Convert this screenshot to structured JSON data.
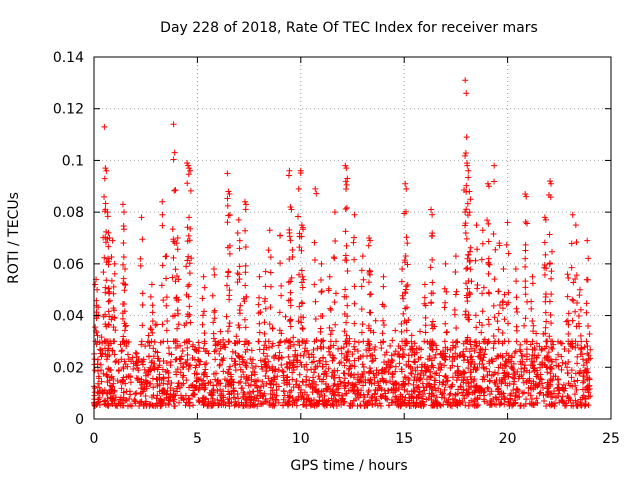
{
  "chart_data": {
    "type": "scatter",
    "title": "Day 228 of 2018, Rate Of TEC Index for receiver mars",
    "xlabel": "GPS time / hours",
    "ylabel": "ROTI / TECUs",
    "xlim": [
      0,
      25
    ],
    "ylim": [
      0,
      0.14
    ],
    "x_ticks": [
      0,
      5,
      10,
      15,
      20,
      25
    ],
    "x_tick_labels": [
      "0",
      "5",
      "10",
      "15",
      "20",
      "25"
    ],
    "y_ticks": [
      0,
      0.02,
      0.04,
      0.06,
      0.08,
      0.1,
      0.12,
      0.14
    ],
    "y_tick_labels": [
      "0",
      "0.02",
      "0.04",
      "0.06",
      "0.08",
      "0.1",
      "0.12",
      "0.14"
    ],
    "grid": true,
    "marker": "+",
    "color": "#ff0000",
    "series": [
      {
        "name": "ROTI",
        "baseline_band": [
          0.005,
          0.03
        ],
        "points": [
          [
            0.5,
            0.113
          ],
          [
            0.55,
            0.097
          ],
          [
            0.6,
            0.096
          ],
          [
            0.65,
            0.08
          ],
          [
            0.7,
            0.072
          ],
          [
            0.75,
            0.07
          ],
          [
            0.9,
            0.069
          ],
          [
            1.4,
            0.083
          ],
          [
            1.45,
            0.08
          ],
          [
            1.5,
            0.058
          ],
          [
            2.3,
            0.078
          ],
          [
            3.3,
            0.084
          ],
          [
            3.85,
            0.114
          ],
          [
            3.9,
            0.103
          ],
          [
            4.0,
            0.068
          ],
          [
            4.05,
            0.07
          ],
          [
            4.5,
            0.099
          ],
          [
            4.55,
            0.098
          ],
          [
            4.6,
            0.097
          ],
          [
            4.65,
            0.096
          ],
          [
            6.45,
            0.095
          ],
          [
            6.5,
            0.088
          ],
          [
            6.55,
            0.087
          ],
          [
            7.0,
            0.077
          ],
          [
            7.05,
            0.069
          ],
          [
            7.3,
            0.084
          ],
          [
            7.35,
            0.083
          ],
          [
            8.5,
            0.073
          ],
          [
            9.0,
            0.071
          ],
          [
            9.45,
            0.096
          ],
          [
            9.5,
            0.082
          ],
          [
            9.55,
            0.081
          ],
          [
            9.9,
            0.089
          ],
          [
            10.0,
            0.096
          ],
          [
            10.05,
            0.075
          ],
          [
            10.1,
            0.074
          ],
          [
            10.7,
            0.089
          ],
          [
            11.65,
            0.08
          ],
          [
            12.15,
            0.098
          ],
          [
            12.2,
            0.097
          ],
          [
            12.25,
            0.093
          ],
          [
            12.6,
            0.079
          ],
          [
            13.3,
            0.07
          ],
          [
            13.35,
            0.069
          ],
          [
            15.05,
            0.091
          ],
          [
            15.1,
            0.089
          ],
          [
            15.15,
            0.068
          ],
          [
            16.3,
            0.081
          ],
          [
            16.35,
            0.079
          ],
          [
            17.95,
            0.131
          ],
          [
            18.0,
            0.126
          ],
          [
            18.02,
            0.109
          ],
          [
            18.05,
            0.098
          ],
          [
            18.1,
            0.096
          ],
          [
            18.15,
            0.088
          ],
          [
            18.2,
            0.085
          ],
          [
            18.5,
            0.075
          ],
          [
            18.8,
            0.073
          ],
          [
            19.05,
            0.091
          ],
          [
            19.1,
            0.09
          ],
          [
            19.35,
            0.098
          ],
          [
            19.6,
            0.068
          ],
          [
            20.0,
            0.076
          ],
          [
            20.4,
            0.058
          ],
          [
            20.85,
            0.087
          ],
          [
            20.9,
            0.086
          ],
          [
            21.8,
            0.078
          ],
          [
            21.85,
            0.077
          ],
          [
            22.05,
            0.092
          ],
          [
            22.1,
            0.091
          ],
          [
            23.15,
            0.079
          ],
          [
            23.3,
            0.075
          ],
          [
            23.85,
            0.069
          ],
          [
            0.1,
            0.054
          ],
          [
            0.15,
            0.05
          ],
          [
            1.0,
            0.06
          ],
          [
            2.8,
            0.052
          ],
          [
            3.5,
            0.063
          ],
          [
            5.3,
            0.055
          ],
          [
            5.8,
            0.058
          ],
          [
            8.0,
            0.055
          ],
          [
            8.3,
            0.057
          ],
          [
            11.0,
            0.06
          ],
          [
            11.4,
            0.055
          ],
          [
            13.0,
            0.063
          ],
          [
            14.0,
            0.055
          ],
          [
            14.9,
            0.058
          ],
          [
            16.0,
            0.052
          ],
          [
            17.0,
            0.06
          ],
          [
            17.5,
            0.063
          ],
          [
            19.8,
            0.058
          ],
          [
            21.2,
            0.055
          ],
          [
            22.9,
            0.056
          ],
          [
            23.5,
            0.05
          ]
        ]
      }
    ]
  }
}
